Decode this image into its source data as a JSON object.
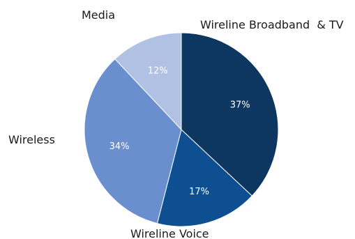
{
  "chart_data": {
    "type": "pie",
    "title": "",
    "labels": [
      "Wireline Broadband  & TV",
      "Wireline Voice",
      "Wireless",
      "Media"
    ],
    "values": [
      37,
      17,
      34,
      12
    ],
    "value_labels": [
      "37%",
      "17%",
      "34%",
      "12%"
    ],
    "colors": [
      "#0d3660",
      "#0e4f91",
      "#6a8fce",
      "#b1c1e3"
    ],
    "start_angle": "12 o'clock",
    "direction": "clockwise",
    "legend": "none"
  }
}
